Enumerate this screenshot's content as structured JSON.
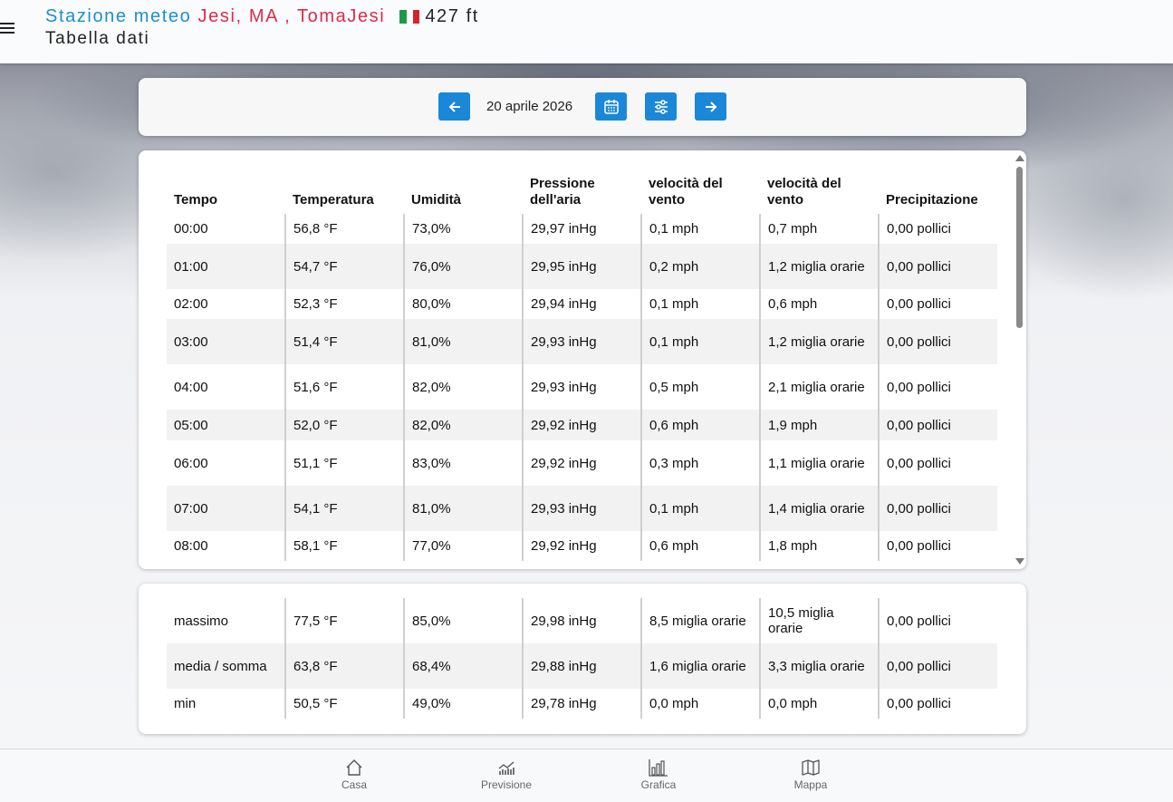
{
  "header": {
    "station_prefix": "Stazione meteo",
    "location": "Jesi, MA , TomaJesi",
    "elevation": "427 ft",
    "subtitle": "Tabella dati",
    "flag_colors": [
      "#1e9a47",
      "#ffffff",
      "#d8232f"
    ]
  },
  "date_nav": {
    "date": "20 aprile 2026",
    "prev_icon": "arrow-left-icon",
    "calendar_icon": "calendar-icon",
    "settings_icon": "sliders-icon",
    "next_icon": "arrow-right-icon",
    "button_color": "#1a87d9"
  },
  "table": {
    "headers": [
      "Tempo",
      "Temperatura",
      "Umidità",
      "Pressione dell'aria",
      "velocità del vento",
      "velocità del vento",
      "Precipitazione"
    ],
    "rows": [
      [
        "00:00",
        "56,8 °F",
        "73,0%",
        "29,97 inHg",
        "0,1 mph",
        "0,7 mph",
        "0,00 pollici"
      ],
      [
        "01:00",
        "54,7 °F",
        "76,0%",
        "29,95 inHg",
        "0,2 mph",
        "1,2 miglia orarie",
        "0,00 pollici"
      ],
      [
        "02:00",
        "52,3 °F",
        "80,0%",
        "29,94 inHg",
        "0,1 mph",
        "0,6 mph",
        "0,00 pollici"
      ],
      [
        "03:00",
        "51,4 °F",
        "81,0%",
        "29,93 inHg",
        "0,1 mph",
        "1,2 miglia orarie",
        "0,00 pollici"
      ],
      [
        "04:00",
        "51,6 °F",
        "82,0%",
        "29,93 inHg",
        "0,5 mph",
        "2,1 miglia orarie",
        "0,00 pollici"
      ],
      [
        "05:00",
        "52,0 °F",
        "82,0%",
        "29,92 inHg",
        "0,6 mph",
        "1,9 mph",
        "0,00 pollici"
      ],
      [
        "06:00",
        "51,1 °F",
        "83,0%",
        "29,92 inHg",
        "0,3 mph",
        "1,1 miglia orarie",
        "0,00 pollici"
      ],
      [
        "07:00",
        "54,1 °F",
        "81,0%",
        "29,93 inHg",
        "0,1 mph",
        "1,4 miglia orarie",
        "0,00 pollici"
      ],
      [
        "08:00",
        "58,1 °F",
        "77,0%",
        "29,92 inHg",
        "0,6 mph",
        "1,8 mph",
        "0,00 pollici"
      ]
    ]
  },
  "summary": {
    "rows": [
      [
        "massimo",
        "77,5 °F",
        "85,0%",
        "29,98 inHg",
        "8,5 miglia orarie",
        "10,5 miglia orarie",
        "0,00 pollici"
      ],
      [
        "media / somma",
        "63,8 °F",
        "68,4%",
        "29,88 inHg",
        "1,6 miglia orarie",
        "3,3 miglia orarie",
        "0,00 pollici"
      ],
      [
        "min",
        "50,5 °F",
        "49,0%",
        "29,78 inHg",
        "0,0 mph",
        "0,0 mph",
        "0,00 pollici"
      ]
    ]
  },
  "bottom_nav": {
    "items": [
      {
        "label": "Casa",
        "icon": "home-icon"
      },
      {
        "label": "Previsione",
        "icon": "forecast-icon"
      },
      {
        "label": "Grafica",
        "icon": "bar-chart-icon"
      },
      {
        "label": "Mappa",
        "icon": "map-icon"
      }
    ]
  }
}
